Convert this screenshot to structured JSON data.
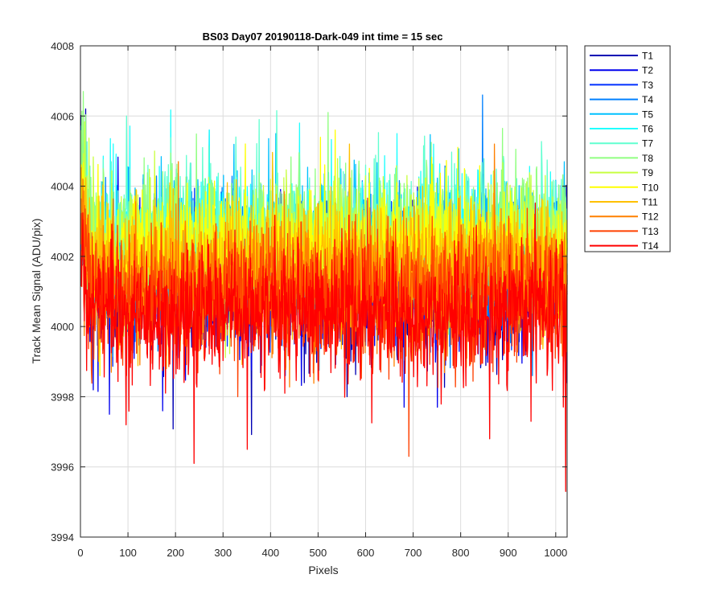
{
  "chart_data": {
    "type": "line",
    "title": "BS03 Day07 20190118-Dark-049 int time = 15 sec",
    "xlabel": "Pixels",
    "ylabel": "Track Mean Signal (ADU/pix)",
    "xlim": [
      0,
      1024
    ],
    "ylim": [
      3994,
      4008
    ],
    "xticks": [
      0,
      100,
      200,
      300,
      400,
      500,
      600,
      700,
      800,
      900,
      1000
    ],
    "yticks": [
      3994,
      3996,
      3998,
      4000,
      4002,
      4004,
      4006,
      4008
    ],
    "grid": true,
    "legend_position": "outside-top-right",
    "n_points": 1024,
    "series": [
      {
        "name": "T1",
        "color": "#0000b4",
        "mean": 4001.2,
        "noise": 1.2,
        "spikes": [
          [
            10,
            4006.2
          ],
          [
            470,
            3998.4
          ],
          [
            560,
            3998.0
          ]
        ]
      },
      {
        "name": "T2",
        "color": "#0000ee",
        "mean": 4001.3,
        "noise": 1.2,
        "spikes": [
          [
            60,
            3997.5
          ],
          [
            680,
            3997.7
          ],
          [
            750,
            3997.7
          ]
        ]
      },
      {
        "name": "T3",
        "color": "#0030ff",
        "mean": 4001.5,
        "noise": 1.1,
        "spikes": [
          [
            430,
            3998.6
          ],
          [
            860,
            3998.2
          ]
        ]
      },
      {
        "name": "T4",
        "color": "#0080ff",
        "mean": 4001.9,
        "noise": 1.2,
        "spikes": [
          [
            845,
            4006.6
          ],
          [
            950,
            3998.6
          ]
        ]
      },
      {
        "name": "T5",
        "color": "#00c0ff",
        "mean": 4002.2,
        "noise": 1.1,
        "spikes": [
          [
            270,
            4005.6
          ],
          [
            410,
            4005.5
          ]
        ]
      },
      {
        "name": "T6",
        "color": "#20ffff",
        "mean": 4002.4,
        "noise": 1.1,
        "spikes": [
          [
            270,
            4005.6
          ],
          [
            460,
            4005.8
          ],
          [
            665,
            4005.5
          ]
        ]
      },
      {
        "name": "T7",
        "color": "#60ffd0",
        "mean": 4002.6,
        "noise": 1.1,
        "spikes": [
          [
            96,
            4006.0
          ],
          [
            375,
            4005.9
          ]
        ]
      },
      {
        "name": "T8",
        "color": "#90ff80",
        "mean": 4002.5,
        "noise": 1.1,
        "spikes": [
          [
            520,
            4006.1
          ],
          [
            5,
            4006.7
          ]
        ]
      },
      {
        "name": "T9",
        "color": "#c8ff40",
        "mean": 4002.3,
        "noise": 1.1,
        "spikes": [
          [
            155,
            4005.0
          ],
          [
            740,
            4004.6
          ]
        ]
      },
      {
        "name": "T10",
        "color": "#ffff00",
        "mean": 4002.1,
        "noise": 1.1,
        "spikes": [
          [
            535,
            4005.6
          ],
          [
            40,
            3998.6
          ]
        ]
      },
      {
        "name": "T11",
        "color": "#ffc000",
        "mean": 4001.7,
        "noise": 1.1,
        "spikes": [
          [
            565,
            4005.2
          ],
          [
            180,
            3998.8
          ]
        ]
      },
      {
        "name": "T12",
        "color": "#ff8000",
        "mean": 4001.2,
        "noise": 1.1,
        "spikes": [
          [
            205,
            4004.7
          ],
          [
            870,
            4005.2
          ]
        ]
      },
      {
        "name": "T13",
        "color": "#ff4000",
        "mean": 4000.8,
        "noise": 1.1,
        "spikes": [
          [
            690,
            3996.3
          ],
          [
            330,
            3998.0
          ]
        ]
      },
      {
        "name": "T14",
        "color": "#ff0000",
        "mean": 4000.3,
        "noise": 1.1,
        "spikes": [
          [
            238,
            3996.1
          ],
          [
            1020,
            3995.3
          ],
          [
            860,
            3996.8
          ],
          [
            95,
            3997.2
          ],
          [
            350,
            3996.5
          ]
        ]
      }
    ]
  }
}
